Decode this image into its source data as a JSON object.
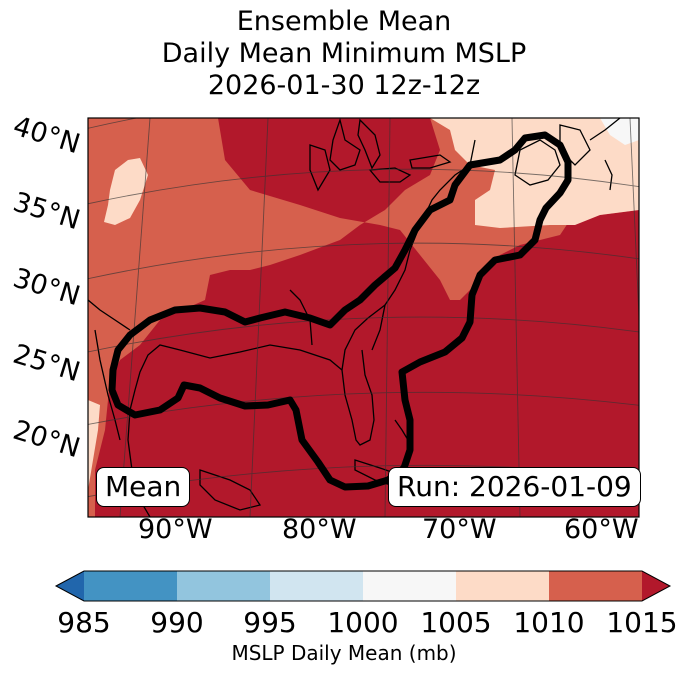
{
  "title": {
    "line1": "Ensemble Mean",
    "line2": "Daily Mean Minimum MSLP",
    "line3": "2026-01-30 12z-12z"
  },
  "map": {
    "lat_labels": [
      "40°N",
      "35°N",
      "30°N",
      "25°N",
      "20°N"
    ],
    "lon_labels": [
      "90°W",
      "80°W",
      "70°W",
      "60°W"
    ],
    "mean_box": "Mean",
    "run_box": "Run: 2026-01-09",
    "fill_colors": {
      "c1015": "#b2182b",
      "c1010": "#d6604d",
      "c1005": "#fddbc7",
      "c1000": "#f7f7f7"
    },
    "contour_color": "#000000",
    "coast_color": "#000000"
  },
  "colorbar": {
    "ticks": [
      "985",
      "990",
      "995",
      "1000",
      "1005",
      "1010",
      "1015"
    ],
    "label": "MSLP Daily Mean (mb)",
    "colors": [
      "#2166ac",
      "#4393c3",
      "#92c5de",
      "#d1e5f0",
      "#f7f7f7",
      "#fddbc7",
      "#d6604d",
      "#b2182b"
    ]
  }
}
